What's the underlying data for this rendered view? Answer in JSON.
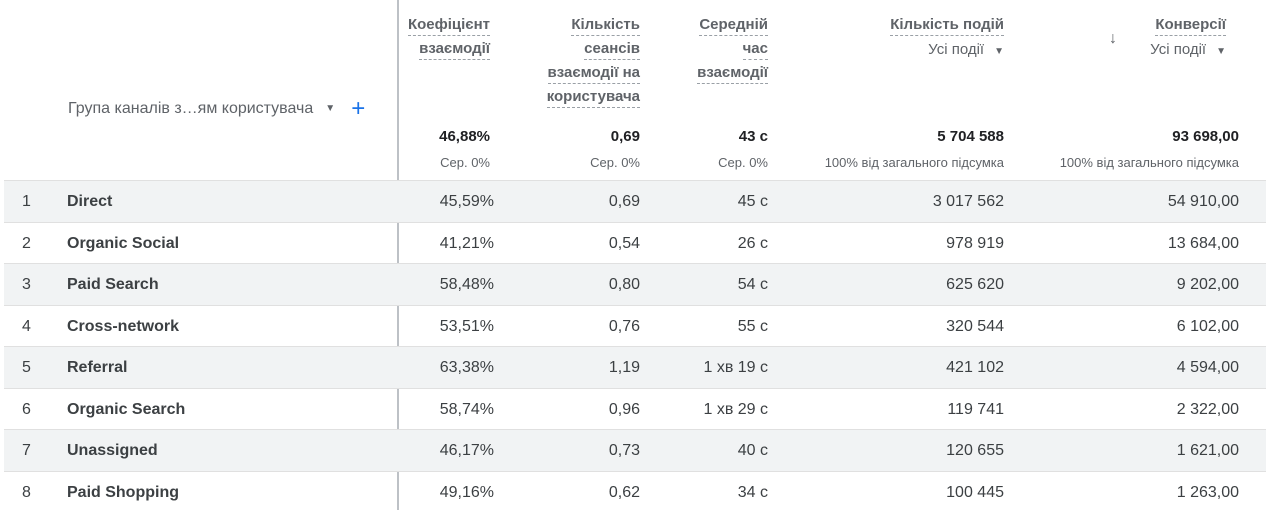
{
  "dimension": {
    "label": "Група каналів з…ям користувача"
  },
  "columns": [
    {
      "lines": [
        "Коефіцієнт",
        "взаємодії"
      ],
      "total": "46,88%",
      "total_sub": "Сер. 0%"
    },
    {
      "lines": [
        "Кількість",
        "сеансів",
        "взаємодії на",
        "користувача"
      ],
      "total": "0,69",
      "total_sub": "Сер. 0%"
    },
    {
      "lines": [
        "Середній",
        "час",
        "взаємодії"
      ],
      "total": "43 с",
      "total_sub": "Сер. 0%"
    },
    {
      "lines": [
        "Кількість подій"
      ],
      "selector": "Усі події",
      "total": "5 704 588",
      "total_sub": "100% від загального підсумка"
    },
    {
      "lines": [
        "Конверсії"
      ],
      "selector": "Усі події",
      "total": "93 698,00",
      "total_sub": "100% від загального підсумка",
      "sorted": "desc"
    }
  ],
  "rows": [
    {
      "idx": "1",
      "name": "Direct",
      "v": [
        "45,59%",
        "0,69",
        "45 с",
        "3 017 562",
        "54 910,00"
      ]
    },
    {
      "idx": "2",
      "name": "Organic Social",
      "v": [
        "41,21%",
        "0,54",
        "26 с",
        "978 919",
        "13 684,00"
      ]
    },
    {
      "idx": "3",
      "name": "Paid Search",
      "v": [
        "58,48%",
        "0,80",
        "54 с",
        "625 620",
        "9 202,00"
      ]
    },
    {
      "idx": "4",
      "name": "Cross-network",
      "v": [
        "53,51%",
        "0,76",
        "55 с",
        "320 544",
        "6 102,00"
      ]
    },
    {
      "idx": "5",
      "name": "Referral",
      "v": [
        "63,38%",
        "1,19",
        "1 хв 19 с",
        "421 102",
        "4 594,00"
      ]
    },
    {
      "idx": "6",
      "name": "Organic Search",
      "v": [
        "58,74%",
        "0,96",
        "1 хв 29 с",
        "119 741",
        "2 322,00"
      ]
    },
    {
      "idx": "7",
      "name": "Unassigned",
      "v": [
        "46,17%",
        "0,73",
        "40 с",
        "120 655",
        "1 621,00"
      ]
    },
    {
      "idx": "8",
      "name": "Paid Shopping",
      "v": [
        "49,16%",
        "0,62",
        "34 с",
        "100 445",
        "1 263,00"
      ]
    }
  ]
}
